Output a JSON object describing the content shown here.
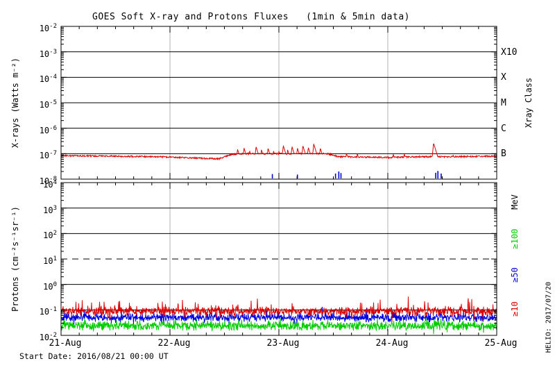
{
  "title": "GOES Soft X-ray and Protons Fluxes   (1min & 5min data)",
  "footer": {
    "start_date": "Start Date: 2016/08/21 00:00 UT",
    "credit": "HELIO: 2017/07/20"
  },
  "colors": {
    "xray_long": "#dd0000",
    "xray_short": "#0000dd",
    "p10": "#dd0000",
    "p50": "#0000dd",
    "p100": "#00cc00",
    "gridline": "#b3b3b3",
    "frame": "#000000"
  },
  "chart_data": {
    "type": "line",
    "x": {
      "start_label": "2016/08/21 00:00 UT",
      "span_days": 4,
      "tick_labels": [
        "21-Aug",
        "22-Aug",
        "23-Aug",
        "24-Aug",
        "25-Aug"
      ],
      "tick_days": [
        0,
        1,
        2,
        3,
        4
      ],
      "gridline_days": [
        1,
        2,
        3
      ],
      "minor_tick_hours": 4
    },
    "panels": [
      {
        "name": "xray",
        "ylabel": "X-rays (Watts m⁻²)",
        "ylim_log": [
          -8,
          -2
        ],
        "ytick_exponents": [
          -2,
          -3,
          -4,
          -5,
          -6,
          -7,
          -8
        ],
        "hlines_log": [
          -3,
          -4,
          -5,
          -6,
          -7
        ],
        "dashed_lines_log": [],
        "right_title": "Xray Class",
        "class_labels": [
          {
            "text": "X10",
            "log": -3
          },
          {
            "text": "X",
            "log": -4
          },
          {
            "text": "M",
            "log": -5
          },
          {
            "text": "C",
            "log": -6
          },
          {
            "text": "B",
            "log": -7
          }
        ],
        "series": [
          {
            "name": "xray_long_1min",
            "color": "#dd0000",
            "kind": "envelope_spikes",
            "noise_log": 0.03,
            "baseline_keypoints": [
              [
                0.0,
                -7.08
              ],
              [
                0.5,
                -7.1
              ],
              [
                0.9,
                -7.12
              ],
              [
                1.2,
                -7.17
              ],
              [
                1.45,
                -7.2
              ],
              [
                1.55,
                -7.05
              ],
              [
                1.62,
                -7.0
              ],
              [
                2.45,
                -7.0
              ],
              [
                2.55,
                -7.12
              ],
              [
                3.0,
                -7.15
              ],
              [
                3.3,
                -7.12
              ],
              [
                3.55,
                -7.12
              ],
              [
                4.0,
                -7.1
              ]
            ],
            "spikes": [
              [
                1.62,
                -6.82
              ],
              [
                1.68,
                -6.78
              ],
              [
                1.73,
                -6.88
              ],
              [
                1.79,
                -6.72
              ],
              [
                1.84,
                -6.85
              ],
              [
                1.9,
                -6.78
              ],
              [
                1.95,
                -6.88
              ],
              [
                2.0,
                -6.9
              ],
              [
                2.04,
                -6.68
              ],
              [
                2.08,
                -6.85
              ],
              [
                2.12,
                -6.72
              ],
              [
                2.17,
                -6.78
              ],
              [
                2.22,
                -6.68
              ],
              [
                2.27,
                -6.75
              ],
              [
                2.32,
                -6.62
              ],
              [
                2.38,
                -6.78
              ],
              [
                2.62,
                -6.98
              ],
              [
                2.72,
                -7.0
              ],
              [
                3.05,
                -7.02
              ],
              [
                3.15,
                -7.0
              ],
              [
                3.42,
                -6.58
              ],
              [
                3.6,
                -7.05
              ]
            ]
          },
          {
            "name": "xray_short_1min",
            "color": "#0000dd",
            "kind": "floor_marks",
            "floor_log": -8,
            "marks": [
              [
                1.94,
                -7.8
              ],
              [
                2.17,
                -7.82
              ],
              [
                2.52,
                -7.78
              ],
              [
                2.55,
                -7.7
              ],
              [
                2.57,
                -7.76
              ],
              [
                3.44,
                -7.75
              ],
              [
                3.46,
                -7.68
              ],
              [
                3.49,
                -7.78
              ]
            ]
          }
        ]
      },
      {
        "name": "protons",
        "ylabel": "Protons (cm⁻²s⁻¹sr⁻¹)",
        "ylim_log": [
          -2,
          4
        ],
        "ytick_exponents": [
          4,
          3,
          2,
          1,
          0,
          -1,
          -2
        ],
        "hlines_log": [
          3,
          2,
          0,
          -1
        ],
        "dashed_lines_log": [
          1
        ],
        "right_title": "MeV",
        "energy_labels": [
          {
            "text": "≥100",
            "color": "#00cc00",
            "log_center": 1.8
          },
          {
            "text": "≥50",
            "color": "#0000dd",
            "log_center": 0.37
          },
          {
            "text": "≥10",
            "color": "#dd0000",
            "log_center": -0.97
          }
        ],
        "series": [
          {
            "name": "p_ge100",
            "label": "≥100",
            "color": "#00cc00",
            "kind": "noise_band",
            "center_log": -1.62,
            "noise_log": 0.13,
            "spike_amp_log": 0.25,
            "mean_flux": 0.024
          },
          {
            "name": "p_ge50",
            "label": "≥50",
            "color": "#0000dd",
            "kind": "noise_band",
            "center_log": -1.3,
            "noise_log": 0.11,
            "spike_amp_log": 0.3,
            "mean_flux": 0.05
          },
          {
            "name": "p_ge10",
            "label": "≥10",
            "color": "#dd0000",
            "kind": "noise_band",
            "center_log": -1.05,
            "noise_log": 0.12,
            "spike_amp_log": 0.45,
            "mean_flux": 0.09
          }
        ]
      }
    ]
  }
}
